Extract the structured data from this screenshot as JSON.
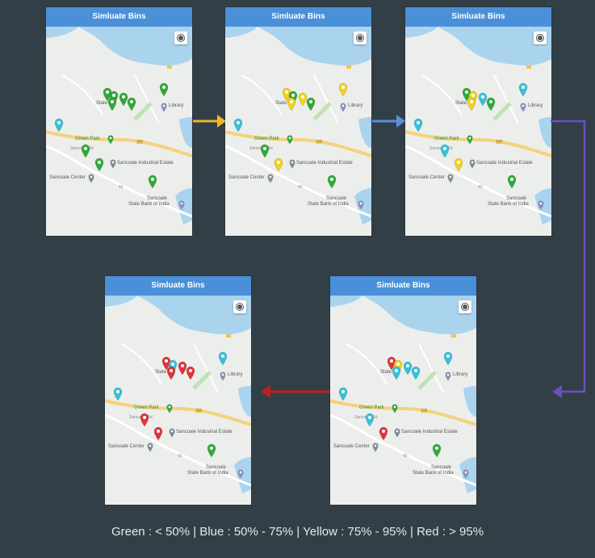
{
  "screens": [
    {
      "title": "Simluate Bins",
      "pins": [
        "green",
        "green",
        "green",
        "green",
        "green",
        "blue",
        "green",
        "green",
        "green",
        "green"
      ]
    },
    {
      "title": "Simluate Bins",
      "pins": [
        "yellow",
        "green",
        "yellow",
        "yellow",
        "green",
        "blue",
        "green",
        "yellow",
        "yellow",
        "green"
      ]
    },
    {
      "title": "Simluate Bins",
      "pins": [
        "green",
        "yellow",
        "blue",
        "yellow",
        "green",
        "blue",
        "blue",
        "yellow",
        "blue",
        "green"
      ]
    },
    {
      "title": "Simluate Bins",
      "pins": [
        "red",
        "yellow",
        "blue",
        "blue",
        "blue",
        "blue",
        "blue",
        "red",
        "blue",
        "green"
      ]
    },
    {
      "title": "Simluate Bins",
      "pins": [
        "red",
        "blue",
        "red",
        "red",
        "red",
        "blue",
        "red",
        "red",
        "blue",
        "green"
      ]
    }
  ],
  "map_labels": {
    "state_bank": "State Ba",
    "library": "Library",
    "green_park": "Green Park",
    "industrial_estate": "Sancoale Industrial Estate",
    "sancoale_center": "Sancoale Center",
    "sancoale": "Sancoale",
    "state_bank_of_india": "State Bank of India",
    "road_tag": "NH",
    "road_tag2": "42",
    "street": "Sancoale Rd"
  },
  "colors": {
    "green": "#2faa3a",
    "blue": "#36c1d9",
    "yellow": "#f2d21b",
    "red": "#e2333a",
    "arrow_yellow": "#f3b42b",
    "arrow_blue": "#5a8fd6",
    "arrow_purple": "#6a4fc2",
    "arrow_red": "#c21f1f"
  },
  "legend": "Green : < 50% | Blue : 50% - 75% | Yellow : 75% - 95% | Red : > 95%"
}
